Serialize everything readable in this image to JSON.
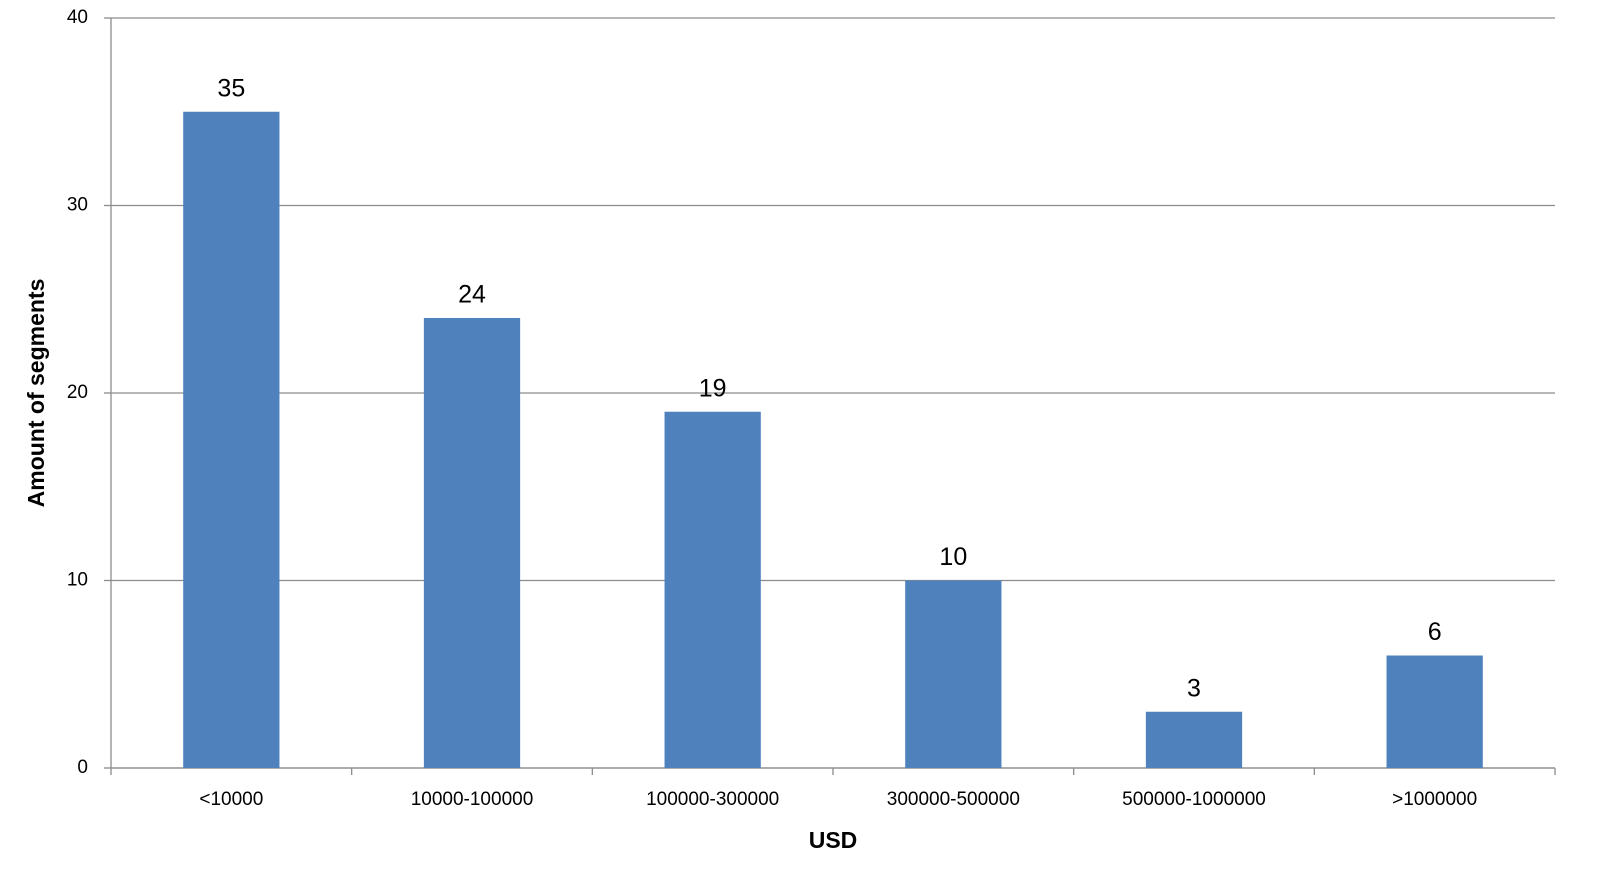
{
  "chart_data": {
    "type": "bar",
    "x_label": "USD",
    "y_label": "Amount of segments",
    "categories": [
      "<10000",
      "10000-100000",
      "100000-300000",
      "300000-500000",
      "500000-1000000",
      ">1000000"
    ],
    "values": [
      35,
      24,
      19,
      10,
      3,
      6
    ],
    "color": "#4f81bd",
    "ylim": [
      0,
      40
    ],
    "yticks": [
      0,
      10,
      20,
      30,
      40
    ],
    "grid": true
  }
}
